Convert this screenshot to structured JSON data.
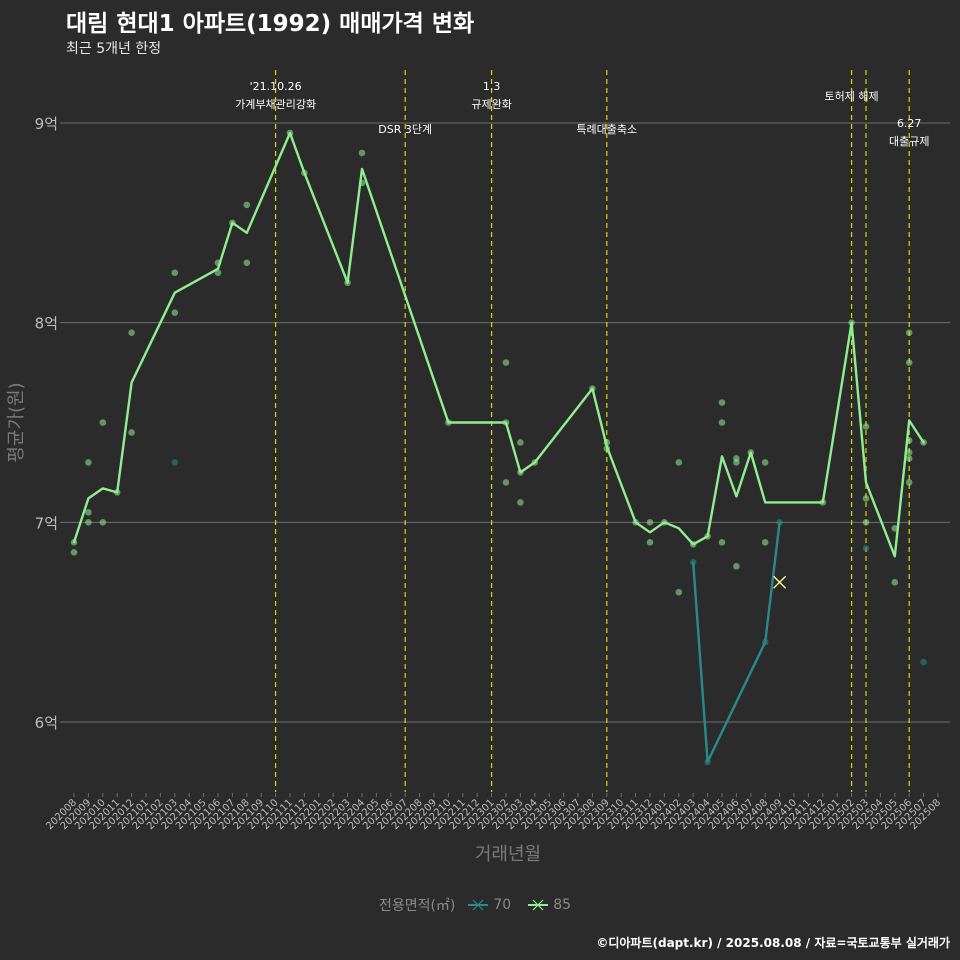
{
  "header": {
    "title": "대림 현대1 아파트(1992) 매매가격 변화",
    "subtitle": "최근 5개년 한정"
  },
  "footer": {
    "caption": "©디아파트(dapt.kr) / 2025.08.08 / 자료=국토교통부 실거래가"
  },
  "colors": {
    "background": "#2b2b2b",
    "grid": "#6e6e6e",
    "series_70": "#2a8a8a",
    "series_85": "#90ee90",
    "event_line": "#d8d800",
    "axis_text": "#bdbdbd",
    "title_text": "#ffffff"
  },
  "chart_data": {
    "type": "line",
    "xlabel": "거래년월",
    "ylabel": "평균가(원)",
    "ylim_eok": [
      5.68,
      9.35
    ],
    "y_ticks": [
      {
        "value": 6,
        "label": "6억"
      },
      {
        "value": 7,
        "label": "7억"
      },
      {
        "value": 8,
        "label": "8억"
      },
      {
        "value": 9,
        "label": "9억"
      }
    ],
    "x_ticks": [
      "202008",
      "202009",
      "202010",
      "202011",
      "202012",
      "202101",
      "202102",
      "202103",
      "202104",
      "202105",
      "202106",
      "202107",
      "202108",
      "202109",
      "202110",
      "202111",
      "202112",
      "202201",
      "202202",
      "202203",
      "202204",
      "202205",
      "202206",
      "202207",
      "202208",
      "202209",
      "202210",
      "202211",
      "202212",
      "202301",
      "202302",
      "202303",
      "202304",
      "202305",
      "202306",
      "202307",
      "202308",
      "202309",
      "202310",
      "202311",
      "202312",
      "202401",
      "202402",
      "202403",
      "202404",
      "202405",
      "202406",
      "202407",
      "202408",
      "202409",
      "202410",
      "202411",
      "202412",
      "202501",
      "202502",
      "202503",
      "202504",
      "202505",
      "202506",
      "202507",
      "202508"
    ],
    "legend": {
      "title": "전용면적(㎡)",
      "items": [
        {
          "label": "70",
          "color": "#2a8a8a"
        },
        {
          "label": "85",
          "color": "#90ee90"
        }
      ]
    },
    "events": [
      {
        "month": "202110",
        "lines": [
          "'21.10.26",
          "가계부채관리강화"
        ],
        "level": 0
      },
      {
        "month": "202207",
        "lines": [
          "DSR 3단계"
        ],
        "level": 1
      },
      {
        "month": "202301",
        "lines": [
          "1.3",
          "규제완화"
        ],
        "level": 0
      },
      {
        "month": "202309",
        "lines": [
          "특례대출축소"
        ],
        "level": 1
      },
      {
        "month": "202502",
        "lines": [
          "토허제 해제"
        ],
        "level": 2
      },
      {
        "month": "202503",
        "lines": [],
        "level": 2
      },
      {
        "month": "202506",
        "lines": [
          "6.27",
          "대출규제"
        ],
        "level": 3
      }
    ],
    "series": [
      {
        "name": "70",
        "color": "#2a8a8a",
        "line": [
          {
            "x": "202403",
            "y": 6.8
          },
          {
            "x": "202404",
            "y": 5.8
          },
          {
            "x": "202408",
            "y": 6.4
          },
          {
            "x": "202409",
            "y": 7.0
          }
        ],
        "points": [
          {
            "x": "202103",
            "y": 7.3
          },
          {
            "x": "202403",
            "y": 6.8
          },
          {
            "x": "202404",
            "y": 5.8
          },
          {
            "x": "202408",
            "y": 6.4
          },
          {
            "x": "202409",
            "y": 7.0
          },
          {
            "x": "202503",
            "y": 6.87
          },
          {
            "x": "202507",
            "y": 6.3
          }
        ],
        "marker": {
          "x": "202409",
          "y": 6.7
        }
      },
      {
        "name": "85",
        "color": "#90ee90",
        "line": [
          {
            "x": "202008",
            "y": 6.9
          },
          {
            "x": "202009",
            "y": 7.12
          },
          {
            "x": "202010",
            "y": 7.17
          },
          {
            "x": "202011",
            "y": 7.15
          },
          {
            "x": "202012",
            "y": 7.7
          },
          {
            "x": "202103",
            "y": 8.15
          },
          {
            "x": "202106",
            "y": 8.27
          },
          {
            "x": "202107",
            "y": 8.5
          },
          {
            "x": "202108",
            "y": 8.45
          },
          {
            "x": "202111",
            "y": 8.95
          },
          {
            "x": "202112",
            "y": 8.75
          },
          {
            "x": "202203",
            "y": 8.2
          },
          {
            "x": "202204",
            "y": 8.77
          },
          {
            "x": "202210",
            "y": 7.5
          },
          {
            "x": "202302",
            "y": 7.5
          },
          {
            "x": "202303",
            "y": 7.25
          },
          {
            "x": "202304",
            "y": 7.3
          },
          {
            "x": "202308",
            "y": 7.67
          },
          {
            "x": "202309",
            "y": 7.38
          },
          {
            "x": "202311",
            "y": 7.0
          },
          {
            "x": "202312",
            "y": 6.95
          },
          {
            "x": "202401",
            "y": 7.0
          },
          {
            "x": "202402",
            "y": 6.97
          },
          {
            "x": "202403",
            "y": 6.89
          },
          {
            "x": "202404",
            "y": 6.93
          },
          {
            "x": "202405",
            "y": 7.33
          },
          {
            "x": "202406",
            "y": 7.13
          },
          {
            "x": "202407",
            "y": 7.35
          },
          {
            "x": "202408",
            "y": 7.1
          },
          {
            "x": "202412",
            "y": 7.1
          },
          {
            "x": "202502",
            "y": 8.0
          },
          {
            "x": "202503",
            "y": 7.2
          },
          {
            "x": "202505",
            "y": 6.83
          },
          {
            "x": "202506",
            "y": 7.51
          },
          {
            "x": "202507",
            "y": 7.4
          }
        ],
        "points": [
          {
            "x": "202008",
            "y": 6.9
          },
          {
            "x": "202008",
            "y": 6.85
          },
          {
            "x": "202009",
            "y": 7.3
          },
          {
            "x": "202009",
            "y": 7.05
          },
          {
            "x": "202009",
            "y": 7.0
          },
          {
            "x": "202010",
            "y": 7.5
          },
          {
            "x": "202010",
            "y": 7.0
          },
          {
            "x": "202011",
            "y": 7.15
          },
          {
            "x": "202012",
            "y": 7.95
          },
          {
            "x": "202012",
            "y": 7.45
          },
          {
            "x": "202103",
            "y": 8.25
          },
          {
            "x": "202103",
            "y": 8.05
          },
          {
            "x": "202106",
            "y": 8.3
          },
          {
            "x": "202106",
            "y": 8.25
          },
          {
            "x": "202107",
            "y": 8.5
          },
          {
            "x": "202108",
            "y": 8.59
          },
          {
            "x": "202108",
            "y": 8.3
          },
          {
            "x": "202111",
            "y": 8.95
          },
          {
            "x": "202112",
            "y": 8.75
          },
          {
            "x": "202203",
            "y": 8.2
          },
          {
            "x": "202204",
            "y": 8.85
          },
          {
            "x": "202204",
            "y": 8.7
          },
          {
            "x": "202210",
            "y": 7.5
          },
          {
            "x": "202302",
            "y": 7.8
          },
          {
            "x": "202302",
            "y": 7.5
          },
          {
            "x": "202302",
            "y": 7.2
          },
          {
            "x": "202303",
            "y": 7.4
          },
          {
            "x": "202303",
            "y": 7.25
          },
          {
            "x": "202303",
            "y": 7.1
          },
          {
            "x": "202304",
            "y": 7.3
          },
          {
            "x": "202308",
            "y": 7.67
          },
          {
            "x": "202309",
            "y": 7.4
          },
          {
            "x": "202309",
            "y": 7.37
          },
          {
            "x": "202311",
            "y": 7.0
          },
          {
            "x": "202312",
            "y": 7.0
          },
          {
            "x": "202312",
            "y": 6.9
          },
          {
            "x": "202401",
            "y": 7.0
          },
          {
            "x": "202402",
            "y": 7.3
          },
          {
            "x": "202402",
            "y": 6.65
          },
          {
            "x": "202403",
            "y": 6.89
          },
          {
            "x": "202404",
            "y": 6.93
          },
          {
            "x": "202405",
            "y": 7.6
          },
          {
            "x": "202405",
            "y": 7.5
          },
          {
            "x": "202405",
            "y": 6.9
          },
          {
            "x": "202406",
            "y": 7.32
          },
          {
            "x": "202406",
            "y": 7.3
          },
          {
            "x": "202406",
            "y": 6.78
          },
          {
            "x": "202407",
            "y": 7.35
          },
          {
            "x": "202408",
            "y": 7.3
          },
          {
            "x": "202408",
            "y": 6.9
          },
          {
            "x": "202412",
            "y": 7.1
          },
          {
            "x": "202502",
            "y": 8.0
          },
          {
            "x": "202503",
            "y": 7.48
          },
          {
            "x": "202503",
            "y": 7.12
          },
          {
            "x": "202503",
            "y": 7.0
          },
          {
            "x": "202505",
            "y": 6.97
          },
          {
            "x": "202505",
            "y": 6.7
          },
          {
            "x": "202506",
            "y": 7.95
          },
          {
            "x": "202506",
            "y": 7.8
          },
          {
            "x": "202506",
            "y": 7.41
          },
          {
            "x": "202506",
            "y": 7.35
          },
          {
            "x": "202506",
            "y": 7.32
          },
          {
            "x": "202506",
            "y": 7.2
          },
          {
            "x": "202507",
            "y": 7.4
          }
        ]
      }
    ]
  }
}
